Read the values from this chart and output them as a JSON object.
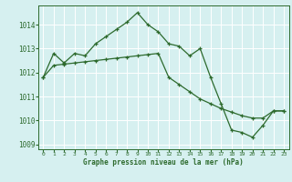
{
  "line1_x": [
    0,
    1,
    2,
    3,
    4,
    5,
    6,
    7,
    8,
    9,
    10,
    11,
    12,
    13,
    14,
    15,
    16,
    17,
    18,
    19,
    20,
    21,
    22,
    23
  ],
  "line1_y": [
    1011.8,
    1012.8,
    1012.4,
    1012.8,
    1012.7,
    1013.2,
    1013.5,
    1013.8,
    1014.1,
    1014.5,
    1014.0,
    1013.7,
    1013.2,
    1013.1,
    1012.7,
    1013.0,
    1011.8,
    1010.7,
    1009.6,
    1009.5,
    1009.3,
    1009.8,
    1010.4,
    1010.4
  ],
  "line2_x": [
    0,
    1,
    2,
    3,
    4,
    5,
    6,
    7,
    8,
    9,
    10,
    11,
    12,
    13,
    14,
    15,
    16,
    17,
    18,
    19,
    20,
    21,
    22,
    23
  ],
  "line2_y": [
    1011.8,
    1012.3,
    1012.35,
    1012.4,
    1012.45,
    1012.5,
    1012.55,
    1012.6,
    1012.65,
    1012.7,
    1012.75,
    1012.8,
    1011.8,
    1011.5,
    1011.2,
    1010.9,
    1010.7,
    1010.5,
    1010.35,
    1010.2,
    1010.1,
    1010.1,
    1010.4,
    1010.4
  ],
  "title": "Graphe pression niveau de la mer (hPa)",
  "line_color": "#2d6a2d",
  "bg_color": "#d6f0f0",
  "grid_color": "#ffffff",
  "xlim": [
    -0.5,
    23.5
  ],
  "ylim": [
    1008.8,
    1014.8
  ],
  "yticks": [
    1009,
    1010,
    1011,
    1012,
    1013,
    1014
  ],
  "xticks": [
    0,
    1,
    2,
    3,
    4,
    5,
    6,
    7,
    8,
    9,
    10,
    11,
    12,
    13,
    14,
    15,
    16,
    17,
    18,
    19,
    20,
    21,
    22,
    23
  ]
}
